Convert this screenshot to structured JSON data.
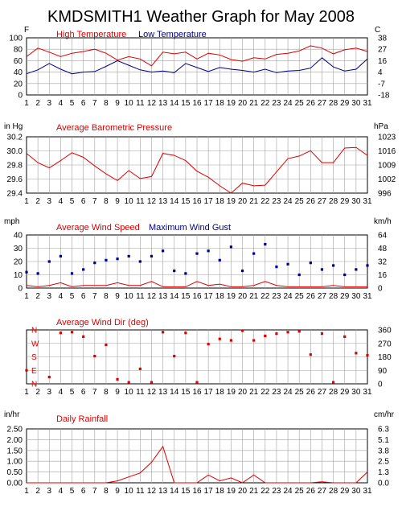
{
  "title": "KMDSMITH1 Weather Graph for May 2008",
  "colors": {
    "red": "#dd0000",
    "blue": "#000088",
    "axis": "#000000",
    "grid": "#a0a0a0"
  },
  "days": [
    "1",
    "2",
    "3",
    "4",
    "5",
    "6",
    "7",
    "8",
    "9",
    "10",
    "11",
    "12",
    "13",
    "14",
    "15",
    "16",
    "17",
    "18",
    "19",
    "20",
    "21",
    "22",
    "23",
    "24",
    "25",
    "26",
    "27",
    "28",
    "29",
    "30",
    "31"
  ],
  "chart_data": [
    {
      "type": "line",
      "left_unit": "F",
      "right_unit": "C",
      "yticks": [
        "100",
        "80",
        "60",
        "40",
        "20",
        "0"
      ],
      "right_ticks": [
        "38",
        "27",
        "16",
        "4",
        "-7",
        "-18"
      ],
      "ylim": [
        0,
        100
      ],
      "series": [
        {
          "name": "High Temperature",
          "color": "#dd0000",
          "values": [
            67,
            82,
            75,
            67,
            73,
            76,
            80,
            73,
            61,
            67,
            63,
            51,
            75,
            72,
            75,
            63,
            73,
            70,
            62,
            59,
            65,
            63,
            71,
            73,
            77,
            86,
            82,
            72,
            79,
            82,
            76
          ]
        },
        {
          "name": "Low Temperature",
          "color": "#000088",
          "values": [
            37,
            44,
            55,
            45,
            37,
            40,
            41,
            50,
            60,
            52,
            44,
            40,
            42,
            39,
            55,
            48,
            41,
            48,
            45,
            43,
            40,
            45,
            39,
            42,
            43,
            47,
            65,
            49,
            42,
            45,
            63
          ]
        }
      ]
    },
    {
      "type": "line",
      "left_unit": "in Hg",
      "right_unit": "hPa",
      "yticks": [
        "30.2",
        "30.0",
        "29.8",
        "29.6",
        "29.4"
      ],
      "right_ticks": [
        "1023",
        "1016",
        "1009",
        "1002",
        "996"
      ],
      "ylim": [
        29.4,
        30.25
      ],
      "series": [
        {
          "name": "Average Barometric Pressure",
          "color": "#dd0000",
          "values": [
            30.0,
            29.86,
            29.78,
            29.89,
            30.01,
            29.94,
            29.81,
            29.69,
            29.59,
            29.74,
            29.62,
            29.65,
            30.0,
            29.97,
            29.89,
            29.73,
            29.64,
            29.51,
            29.4,
            29.55,
            29.51,
            29.52,
            29.72,
            29.92,
            29.96,
            30.04,
            29.86,
            29.86,
            30.08,
            30.09,
            29.97
          ]
        }
      ]
    },
    {
      "type": "line+scatter",
      "left_unit": "mph",
      "right_unit": "km/h",
      "yticks": [
        "40",
        "30",
        "20",
        "10",
        "0"
      ],
      "right_ticks": [
        "64",
        "48",
        "32",
        "16",
        "0"
      ],
      "ylim": [
        0,
        40
      ],
      "series": [
        {
          "name": "Average Wind Speed",
          "color": "#dd0000",
          "values": [
            2,
            1,
            2,
            4,
            1,
            2,
            2,
            2,
            4,
            2,
            2,
            5,
            1,
            1,
            1,
            5,
            2,
            3,
            1,
            1,
            2,
            5,
            2,
            1,
            1,
            1,
            1,
            2,
            1,
            1,
            1
          ]
        },
        {
          "name": "Maximum Wind Gust",
          "color": "#000088",
          "values": [
            12,
            11,
            20,
            24,
            11,
            14,
            19,
            21,
            22,
            24,
            20,
            24,
            28,
            13,
            11,
            26,
            28,
            21,
            31,
            13,
            26,
            33,
            16,
            18,
            10,
            19,
            14,
            17,
            10,
            14,
            17
          ]
        }
      ]
    },
    {
      "type": "scatter",
      "left_unit": "",
      "right_unit": "",
      "yticks": [
        "N",
        "W",
        "S",
        "E",
        "N"
      ],
      "right_ticks": [
        "360",
        "270",
        "180",
        "90",
        "0"
      ],
      "ylim": [
        0,
        360
      ],
      "series": [
        {
          "name": "Average Wind Dir (deg)",
          "color": "#dd0000",
          "values": [
            90,
            null,
            45,
            340,
            345,
            315,
            185,
            260,
            30,
            10,
            100,
            10,
            345,
            185,
            340,
            10,
            265,
            300,
            290,
            355,
            290,
            320,
            335,
            345,
            350,
            195,
            335,
            10,
            315,
            205,
            190
          ]
        }
      ]
    },
    {
      "type": "line",
      "left_unit": "in/hr",
      "right_unit": "cm/hr",
      "yticks": [
        "2.50",
        "2.00",
        "1.50",
        "1.00",
        "0.50",
        "0.00"
      ],
      "right_ticks": [
        "6.3",
        "5.1",
        "3.8",
        "2.5",
        "1.3",
        "0.0"
      ],
      "ylim": [
        0,
        2.75
      ],
      "series": [
        {
          "name": "Daily Rainfall",
          "color": "#dd0000",
          "values": [
            0,
            0,
            0,
            0,
            0,
            0,
            0,
            0,
            0.1,
            0.3,
            0.5,
            1.05,
            1.85,
            0,
            0,
            0,
            0.4,
            0.1,
            0.25,
            0,
            0.4,
            0,
            0,
            0,
            0,
            0,
            0.05,
            0,
            0,
            0,
            0.55
          ]
        }
      ]
    }
  ]
}
